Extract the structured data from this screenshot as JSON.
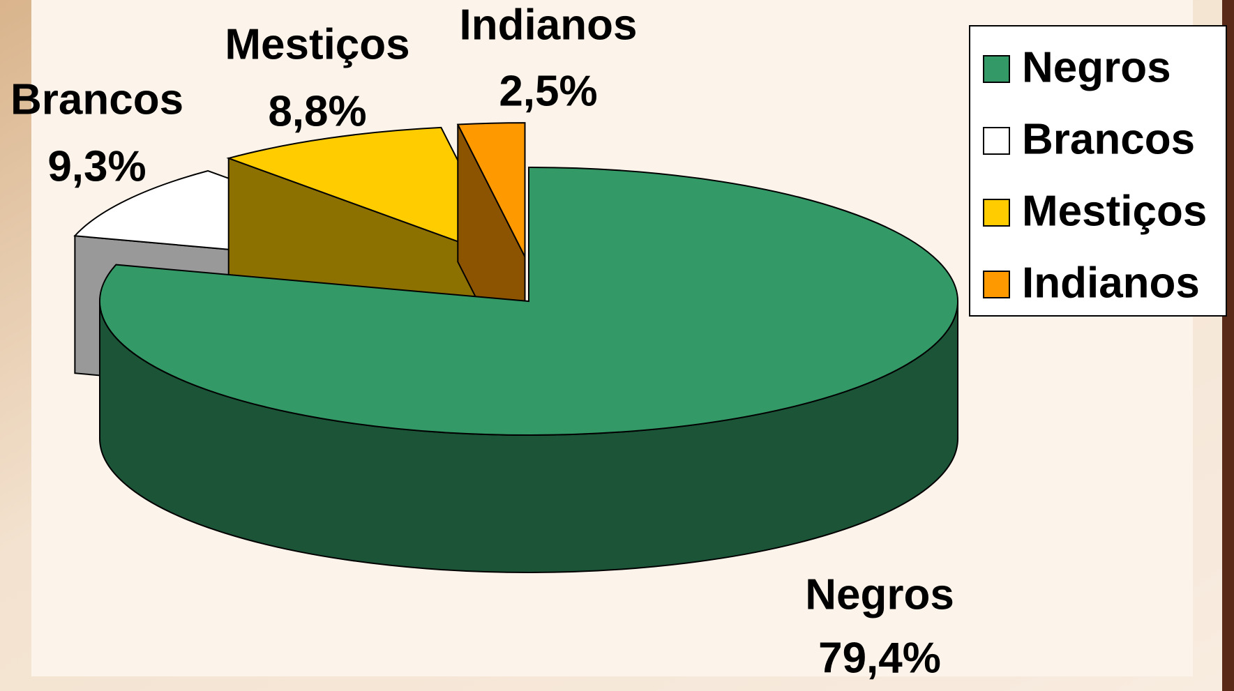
{
  "chart_data": {
    "type": "pie3d",
    "categories": [
      "Negros",
      "Brancos",
      "Mestiços",
      "Indianos"
    ],
    "values": [
      79.4,
      9.3,
      8.8,
      2.5
    ],
    "value_labels": [
      "79,4%",
      "9,3%",
      "8,8%",
      "2,5%"
    ],
    "colors": [
      "#339966",
      "#ffffff",
      "#ffcc00",
      "#ff9900"
    ],
    "legend": "top-right"
  }
}
